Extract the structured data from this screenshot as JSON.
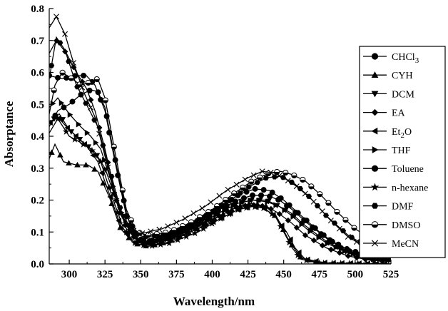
{
  "chart_data": {
    "type": "line",
    "title": "",
    "xlabel": "Wavelength/nm",
    "ylabel": "Absorptance",
    "xlim": [
      286,
      525
    ],
    "ylim": [
      0.0,
      0.8
    ],
    "xticks": [
      "300",
      "325",
      "350",
      "375",
      "400",
      "425",
      "450",
      "475",
      "500",
      "525"
    ],
    "yticks": [
      "0.0",
      "0.1",
      "0.2",
      "0.3",
      "0.4",
      "0.5",
      "0.6",
      "0.7",
      "0.8"
    ],
    "legend_position": "right",
    "grid": false,
    "series": [
      {
        "name": "CHCl3",
        "label_main": "CHCl",
        "label_sub": "3",
        "marker": "circle",
        "points": [
          [
            286,
            0.59
          ],
          [
            295,
            0.58
          ],
          [
            305,
            0.59
          ],
          [
            312,
            0.59
          ],
          [
            318,
            0.56
          ],
          [
            325,
            0.48
          ],
          [
            332,
            0.32
          ],
          [
            340,
            0.15
          ],
          [
            348,
            0.08
          ],
          [
            355,
            0.07
          ],
          [
            370,
            0.09
          ],
          [
            390,
            0.13
          ],
          [
            405,
            0.18
          ],
          [
            420,
            0.22
          ],
          [
            430,
            0.235
          ],
          [
            440,
            0.23
          ],
          [
            450,
            0.2
          ],
          [
            460,
            0.16
          ],
          [
            475,
            0.1
          ],
          [
            490,
            0.05
          ],
          [
            505,
            0.025
          ],
          [
            525,
            0.015
          ]
        ]
      },
      {
        "name": "CYH",
        "label_main": "CYH",
        "label_sub": "",
        "marker": "triangle-up",
        "points": [
          [
            286,
            0.33
          ],
          [
            290,
            0.375
          ],
          [
            296,
            0.32
          ],
          [
            305,
            0.31
          ],
          [
            313,
            0.31
          ],
          [
            320,
            0.29
          ],
          [
            328,
            0.21
          ],
          [
            336,
            0.11
          ],
          [
            345,
            0.065
          ],
          [
            355,
            0.055
          ],
          [
            370,
            0.07
          ],
          [
            390,
            0.11
          ],
          [
            405,
            0.15
          ],
          [
            418,
            0.18
          ],
          [
            428,
            0.19
          ],
          [
            438,
            0.18
          ],
          [
            446,
            0.14
          ],
          [
            454,
            0.07
          ],
          [
            462,
            0.02
          ],
          [
            475,
            0.003
          ],
          [
            500,
            0.0
          ],
          [
            525,
            0.0
          ]
        ]
      },
      {
        "name": "DCM",
        "label_main": "DCM",
        "label_sub": "",
        "marker": "triangle-down",
        "points": [
          [
            286,
            0.44
          ],
          [
            293,
            0.47
          ],
          [
            300,
            0.42
          ],
          [
            310,
            0.38
          ],
          [
            318,
            0.35
          ],
          [
            325,
            0.3
          ],
          [
            332,
            0.21
          ],
          [
            340,
            0.12
          ],
          [
            348,
            0.075
          ],
          [
            355,
            0.065
          ],
          [
            370,
            0.08
          ],
          [
            390,
            0.12
          ],
          [
            405,
            0.16
          ],
          [
            418,
            0.19
          ],
          [
            428,
            0.2
          ],
          [
            438,
            0.2
          ],
          [
            447,
            0.18
          ],
          [
            455,
            0.16
          ],
          [
            465,
            0.12
          ],
          [
            480,
            0.07
          ],
          [
            495,
            0.035
          ],
          [
            510,
            0.015
          ],
          [
            525,
            0.01
          ]
        ]
      },
      {
        "name": "EA",
        "label_main": "EA",
        "label_sub": "",
        "marker": "diamond",
        "points": [
          [
            286,
            0.66
          ],
          [
            291,
            0.7
          ],
          [
            298,
            0.66
          ],
          [
            305,
            0.6
          ],
          [
            312,
            0.55
          ],
          [
            318,
            0.48
          ],
          [
            325,
            0.36
          ],
          [
            333,
            0.2
          ],
          [
            340,
            0.11
          ],
          [
            348,
            0.07
          ],
          [
            355,
            0.065
          ],
          [
            370,
            0.08
          ],
          [
            390,
            0.12
          ],
          [
            405,
            0.15
          ],
          [
            418,
            0.18
          ],
          [
            428,
            0.185
          ],
          [
            438,
            0.18
          ],
          [
            446,
            0.16
          ],
          [
            455,
            0.13
          ],
          [
            465,
            0.09
          ],
          [
            480,
            0.05
          ],
          [
            495,
            0.025
          ],
          [
            510,
            0.012
          ],
          [
            525,
            0.008
          ]
        ]
      },
      {
        "name": "Et2O",
        "label_main": "Et",
        "label_sub": "2",
        "label_tail": "O",
        "marker": "triangle-left",
        "points": [
          [
            286,
            0.44
          ],
          [
            292,
            0.46
          ],
          [
            298,
            0.43
          ],
          [
            305,
            0.4
          ],
          [
            312,
            0.37
          ],
          [
            320,
            0.32
          ],
          [
            328,
            0.22
          ],
          [
            336,
            0.12
          ],
          [
            345,
            0.07
          ],
          [
            355,
            0.06
          ],
          [
            370,
            0.075
          ],
          [
            390,
            0.11
          ],
          [
            405,
            0.14
          ],
          [
            418,
            0.17
          ],
          [
            428,
            0.18
          ],
          [
            436,
            0.175
          ],
          [
            444,
            0.15
          ],
          [
            452,
            0.1
          ],
          [
            458,
            0.05
          ],
          [
            465,
            0.015
          ],
          [
            480,
            0.003
          ],
          [
            525,
            0.0
          ]
        ]
      },
      {
        "name": "THF",
        "label_main": "THF",
        "label_sub": "",
        "marker": "triangle-right",
        "points": [
          [
            286,
            0.49
          ],
          [
            292,
            0.52
          ],
          [
            300,
            0.47
          ],
          [
            308,
            0.43
          ],
          [
            315,
            0.4
          ],
          [
            322,
            0.36
          ],
          [
            330,
            0.25
          ],
          [
            338,
            0.14
          ],
          [
            346,
            0.08
          ],
          [
            355,
            0.065
          ],
          [
            370,
            0.08
          ],
          [
            390,
            0.12
          ],
          [
            405,
            0.16
          ],
          [
            418,
            0.19
          ],
          [
            428,
            0.2
          ],
          [
            438,
            0.195
          ],
          [
            447,
            0.18
          ],
          [
            456,
            0.15
          ],
          [
            466,
            0.11
          ],
          [
            480,
            0.065
          ],
          [
            495,
            0.035
          ],
          [
            510,
            0.02
          ],
          [
            525,
            0.015
          ]
        ]
      },
      {
        "name": "Toluene",
        "label_main": "Toluene",
        "label_sub": "",
        "marker": "circle",
        "points": [
          [
            286,
            0.43
          ],
          [
            292,
            0.48
          ],
          [
            300,
            0.5
          ],
          [
            308,
            0.53
          ],
          [
            315,
            0.545
          ],
          [
            320,
            0.54
          ],
          [
            325,
            0.49
          ],
          [
            332,
            0.33
          ],
          [
            340,
            0.16
          ],
          [
            348,
            0.08
          ],
          [
            355,
            0.07
          ],
          [
            370,
            0.09
          ],
          [
            390,
            0.13
          ],
          [
            405,
            0.17
          ],
          [
            418,
            0.2
          ],
          [
            428,
            0.215
          ],
          [
            438,
            0.215
          ],
          [
            447,
            0.2
          ],
          [
            456,
            0.17
          ],
          [
            466,
            0.13
          ],
          [
            480,
            0.08
          ],
          [
            495,
            0.045
          ],
          [
            510,
            0.025
          ],
          [
            525,
            0.015
          ]
        ]
      },
      {
        "name": "n-hexane",
        "label_main": "n-hexane",
        "label_sub": "",
        "marker": "star",
        "points": [
          [
            286,
            0.41
          ],
          [
            292,
            0.455
          ],
          [
            300,
            0.4
          ],
          [
            308,
            0.38
          ],
          [
            315,
            0.36
          ],
          [
            322,
            0.32
          ],
          [
            330,
            0.21
          ],
          [
            338,
            0.11
          ],
          [
            346,
            0.065
          ],
          [
            355,
            0.055
          ],
          [
            370,
            0.065
          ],
          [
            390,
            0.1
          ],
          [
            405,
            0.14
          ],
          [
            418,
            0.17
          ],
          [
            428,
            0.18
          ],
          [
            436,
            0.175
          ],
          [
            444,
            0.15
          ],
          [
            450,
            0.1
          ],
          [
            456,
            0.05
          ],
          [
            462,
            0.015
          ],
          [
            475,
            0.002
          ],
          [
            525,
            0.0
          ]
        ]
      },
      {
        "name": "DMF",
        "label_main": "DMF",
        "label_sub": "",
        "marker": "hexagon",
        "points": [
          [
            286,
            0.58
          ],
          [
            291,
            0.71
          ],
          [
            297,
            0.67
          ],
          [
            305,
            0.56
          ],
          [
            312,
            0.5
          ],
          [
            320,
            0.43
          ],
          [
            328,
            0.3
          ],
          [
            336,
            0.17
          ],
          [
            344,
            0.1
          ],
          [
            352,
            0.085
          ],
          [
            365,
            0.09
          ],
          [
            380,
            0.11
          ],
          [
            395,
            0.15
          ],
          [
            410,
            0.19
          ],
          [
            425,
            0.24
          ],
          [
            438,
            0.27
          ],
          [
            448,
            0.275
          ],
          [
            458,
            0.25
          ],
          [
            468,
            0.21
          ],
          [
            480,
            0.15
          ],
          [
            495,
            0.09
          ],
          [
            510,
            0.05
          ],
          [
            525,
            0.03
          ]
        ]
      },
      {
        "name": "DMSO",
        "label_main": "DMSO",
        "label_sub": "",
        "marker": "circle-half",
        "points": [
          [
            286,
            0.47
          ],
          [
            290,
            0.56
          ],
          [
            295,
            0.6
          ],
          [
            302,
            0.58
          ],
          [
            308,
            0.56
          ],
          [
            315,
            0.57
          ],
          [
            320,
            0.58
          ],
          [
            325,
            0.52
          ],
          [
            332,
            0.35
          ],
          [
            340,
            0.17
          ],
          [
            347,
            0.1
          ],
          [
            355,
            0.09
          ],
          [
            370,
            0.1
          ],
          [
            385,
            0.13
          ],
          [
            400,
            0.17
          ],
          [
            415,
            0.22
          ],
          [
            428,
            0.26
          ],
          [
            440,
            0.285
          ],
          [
            448,
            0.29
          ],
          [
            456,
            0.28
          ],
          [
            465,
            0.26
          ],
          [
            475,
            0.22
          ],
          [
            488,
            0.16
          ],
          [
            500,
            0.11
          ],
          [
            512,
            0.075
          ],
          [
            525,
            0.05
          ]
        ]
      },
      {
        "name": "MeCN",
        "label_main": "MeCN",
        "label_sub": "",
        "marker": "x",
        "points": [
          [
            286,
            0.74
          ],
          [
            291,
            0.775
          ],
          [
            297,
            0.72
          ],
          [
            303,
            0.63
          ],
          [
            310,
            0.54
          ],
          [
            318,
            0.46
          ],
          [
            326,
            0.32
          ],
          [
            334,
            0.18
          ],
          [
            342,
            0.11
          ],
          [
            350,
            0.095
          ],
          [
            365,
            0.11
          ],
          [
            380,
            0.14
          ],
          [
            395,
            0.18
          ],
          [
            410,
            0.23
          ],
          [
            425,
            0.27
          ],
          [
            435,
            0.29
          ],
          [
            443,
            0.285
          ],
          [
            450,
            0.27
          ],
          [
            460,
            0.24
          ],
          [
            470,
            0.2
          ],
          [
            482,
            0.14
          ],
          [
            495,
            0.085
          ],
          [
            510,
            0.045
          ],
          [
            525,
            0.025
          ]
        ]
      }
    ]
  }
}
